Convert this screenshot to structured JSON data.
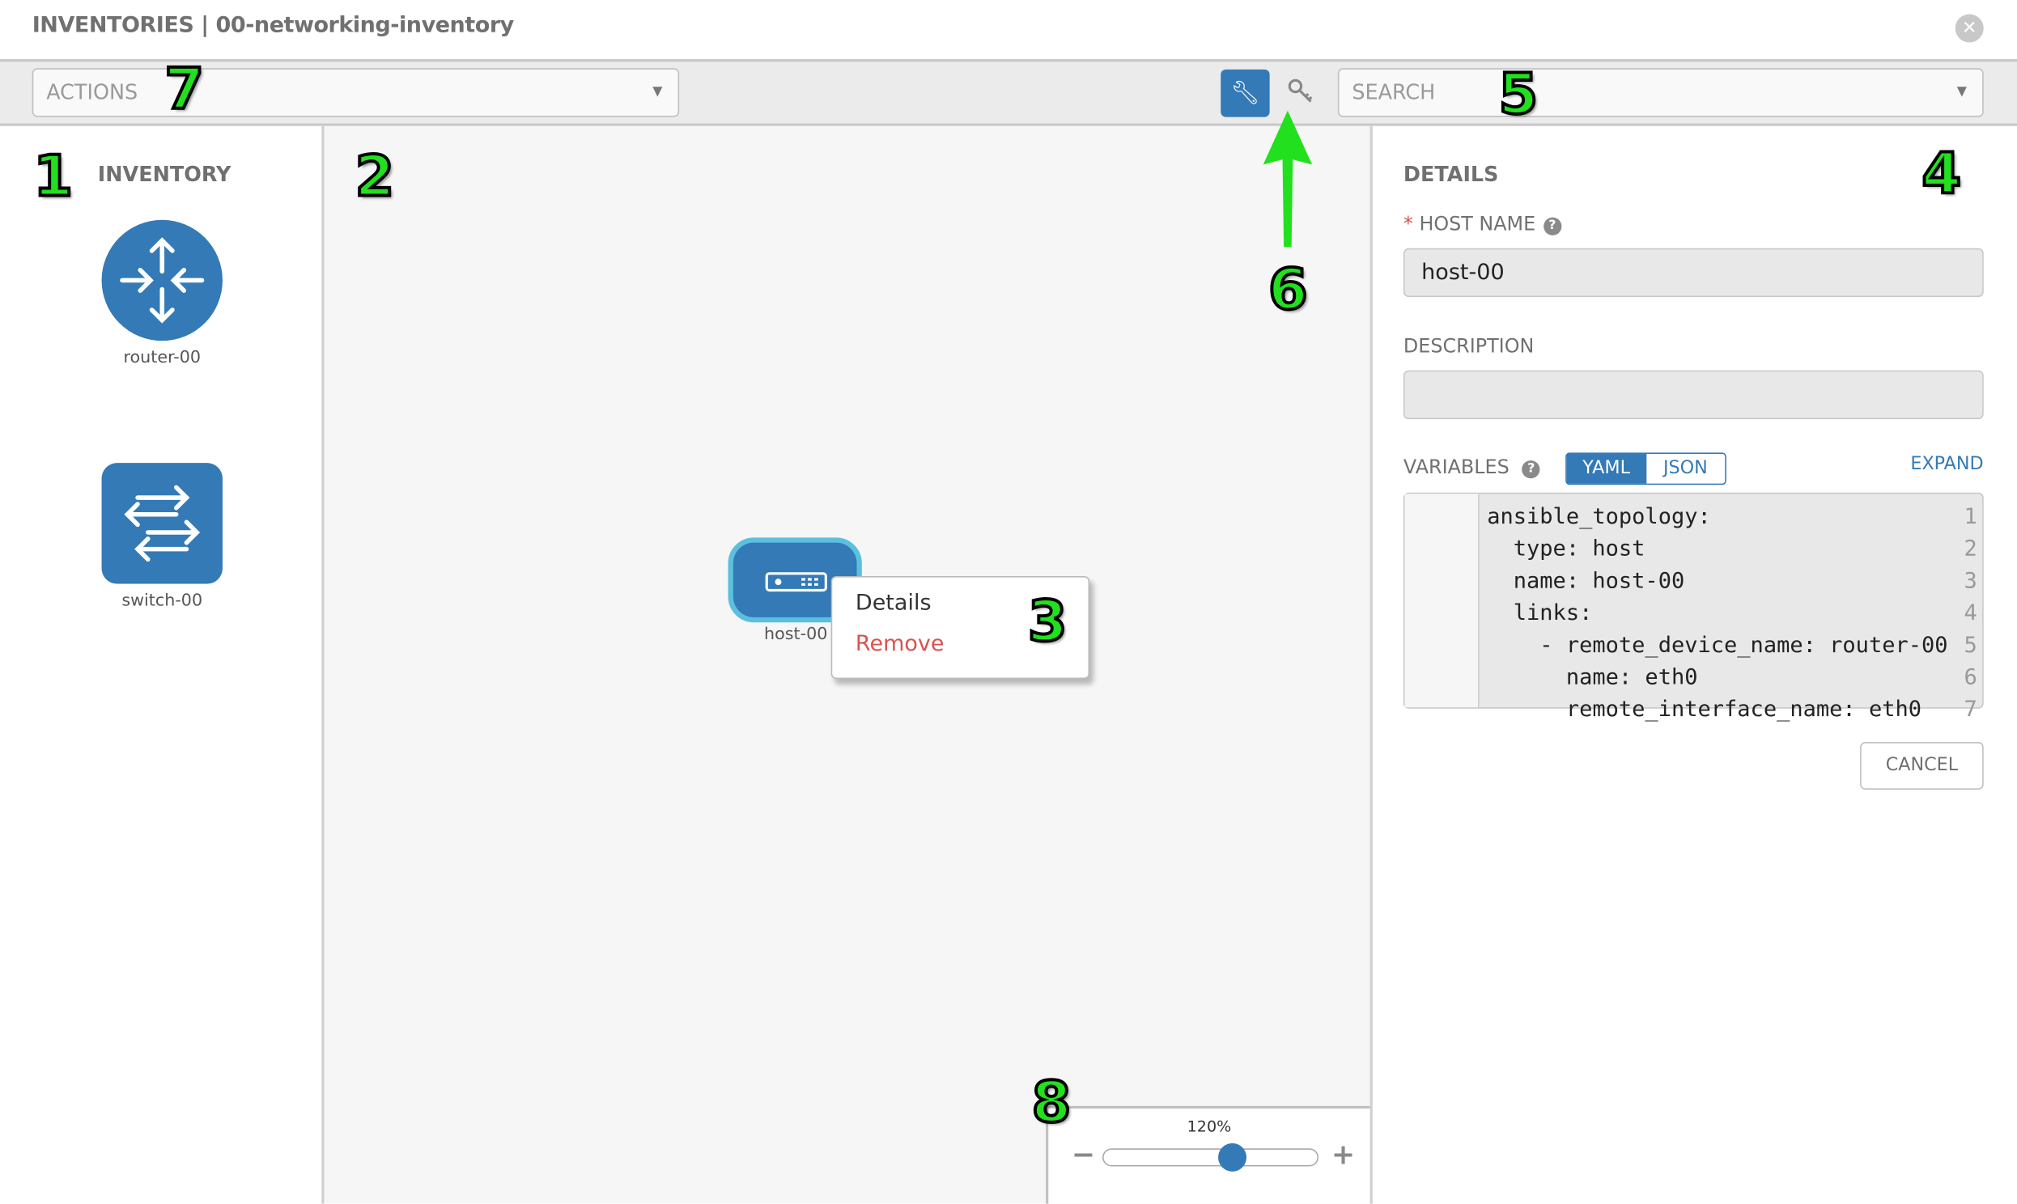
{
  "header": {
    "title": "INVENTORIES | 00-networking-inventory",
    "close_icon": "close-circle-icon"
  },
  "toolbar": {
    "actions_placeholder": "ACTIONS",
    "search_placeholder": "SEARCH",
    "mode_buttons": [
      {
        "icon": "wrench-icon",
        "active": true
      },
      {
        "icon": "key-icon",
        "active": false
      }
    ]
  },
  "inventory": {
    "title": "INVENTORY",
    "devices": [
      {
        "label": "router-00",
        "icon": "router-icon"
      },
      {
        "label": "switch-00",
        "icon": "switch-icon"
      }
    ]
  },
  "canvas": {
    "host": {
      "label": "host-00",
      "icon": "host-icon"
    },
    "context_menu": {
      "items": [
        {
          "label": "Details"
        },
        {
          "label": "Remove"
        }
      ]
    }
  },
  "zoom": {
    "label": "120%",
    "minus": "−",
    "plus": "+",
    "slider_fraction": 0.6
  },
  "details": {
    "title": "DETAILS",
    "required_mark": "*",
    "host_name_label": "HOST NAME",
    "host_name_value": "host-00",
    "description_label": "DESCRIPTION",
    "description_value": "",
    "variables_label": "VARIABLES",
    "yaml_label": "YAML",
    "json_label": "JSON",
    "expand_label": "EXPAND",
    "cancel_label": "CANCEL",
    "code_lines": [
      {
        "n": "1",
        "text": "ansible_topology:"
      },
      {
        "n": "2",
        "text": "  type: host"
      },
      {
        "n": "3",
        "text": "  name: host-00"
      },
      {
        "n": "4",
        "text": "  links:"
      },
      {
        "n": "5",
        "text": "    - remote_device_name: router-00"
      },
      {
        "n": "6",
        "text": "      name: eth0"
      },
      {
        "n": "7",
        "text": "      remote_interface_name: eth0"
      }
    ]
  },
  "annotations": [
    "1",
    "2",
    "3",
    "4",
    "5",
    "6",
    "7",
    "8"
  ],
  "colors": {
    "accent": "#337ab7",
    "node_border": "#5bc0de",
    "danger": "#d9534f",
    "annotation": "#22e01e"
  }
}
